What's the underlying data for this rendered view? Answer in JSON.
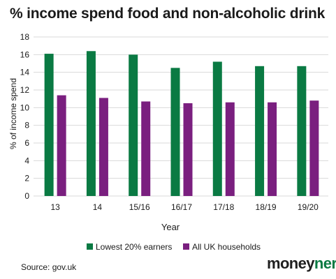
{
  "title": "% income spend food and non-alcoholic drink",
  "source": "Source: gov.uk",
  "brand": {
    "part1": "money",
    "part2": "nerd"
  },
  "colors": {
    "series1": "#0a7a43",
    "series2": "#7a1f7f",
    "grid": "#d9d9d9",
    "axis_text": "#1a1a1a"
  },
  "chart_data": {
    "type": "bar",
    "categories": [
      "13",
      "14",
      "15/16",
      "16/17",
      "17/18",
      "18/19",
      "19/20"
    ],
    "series": [
      {
        "name": "Lowest 20% earners",
        "color": "#0a7a43",
        "values": [
          16.1,
          16.4,
          16.0,
          14.5,
          15.2,
          14.7,
          14.7
        ]
      },
      {
        "name": "All UK households",
        "color": "#7a1f7f",
        "values": [
          11.4,
          11.1,
          10.7,
          10.5,
          10.6,
          10.6,
          10.8
        ]
      }
    ],
    "xlabel": "Year",
    "ylabel": "% of income spend",
    "ylim": [
      0,
      18
    ],
    "yticks": [
      0,
      2,
      4,
      6,
      8,
      10,
      12,
      14,
      16,
      18
    ],
    "grid": true,
    "legend_position": "bottom"
  }
}
